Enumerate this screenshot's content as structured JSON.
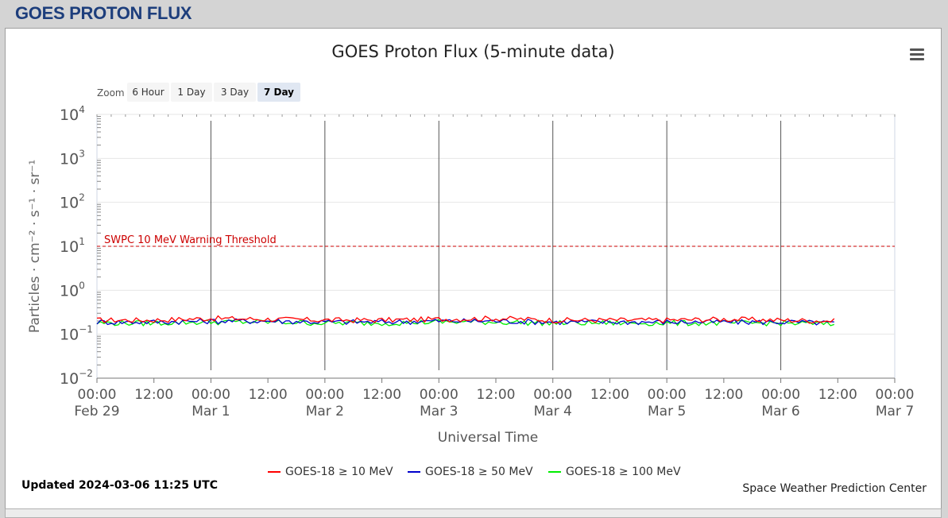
{
  "page": {
    "title": "GOES PROTON FLUX"
  },
  "chart_toolbar": {
    "zoom_label": "Zoom",
    "zoom_buttons": [
      "6 Hour",
      "1 Day",
      "3 Day",
      "7 Day"
    ],
    "active_zoom": "7 Day"
  },
  "footer": {
    "updated": "Updated 2024-03-06 11:25 UTC",
    "credit": "Space Weather Prediction Center"
  },
  "colors": {
    "ge10": "#ff0000",
    "ge50": "#0000cc",
    "ge100": "#00ee00",
    "threshold": "#cc0000"
  },
  "chart_data": {
    "type": "line",
    "title": "GOES Proton Flux (5-minute data)",
    "xlabel": "Universal Time",
    "ylabel": "Particles · cm⁻² · s⁻¹ · sr⁻¹",
    "y_scale": "log",
    "ylim": [
      0.01,
      10000
    ],
    "y_ticks": [
      {
        "base": "10",
        "exp": "4",
        "value": 10000
      },
      {
        "base": "10",
        "exp": "3",
        "value": 1000
      },
      {
        "base": "10",
        "exp": "2",
        "value": 100
      },
      {
        "base": "10",
        "exp": "1",
        "value": 10
      },
      {
        "base": "10",
        "exp": "0",
        "value": 1
      },
      {
        "base": "10",
        "exp": "−1",
        "value": 0.1
      },
      {
        "base": "10",
        "exp": "−2",
        "value": 0.01
      }
    ],
    "xlim": [
      "2024-02-29 00:00",
      "2024-03-07 00:00"
    ],
    "x_ticks": [
      {
        "time": "00:00",
        "date": "Feb 29",
        "hours": 0
      },
      {
        "time": "12:00",
        "date": "",
        "hours": 12
      },
      {
        "time": "00:00",
        "date": "Mar 1",
        "hours": 24
      },
      {
        "time": "12:00",
        "date": "",
        "hours": 36
      },
      {
        "time": "00:00",
        "date": "Mar 2",
        "hours": 48
      },
      {
        "time": "12:00",
        "date": "",
        "hours": 60
      },
      {
        "time": "00:00",
        "date": "Mar 3",
        "hours": 72
      },
      {
        "time": "12:00",
        "date": "",
        "hours": 84
      },
      {
        "time": "00:00",
        "date": "Mar 4",
        "hours": 96
      },
      {
        "time": "12:00",
        "date": "",
        "hours": 108
      },
      {
        "time": "00:00",
        "date": "Mar 5",
        "hours": 120
      },
      {
        "time": "12:00",
        "date": "",
        "hours": 132
      },
      {
        "time": "00:00",
        "date": "Mar 6",
        "hours": 144
      },
      {
        "time": "12:00",
        "date": "",
        "hours": 156
      },
      {
        "time": "00:00",
        "date": "Mar 7",
        "hours": 168
      }
    ],
    "day_markers_hours": [
      24,
      48,
      72,
      96,
      120,
      144
    ],
    "threshold": {
      "label": "SWPC 10 MeV Warning Threshold",
      "value": 10
    },
    "series": [
      {
        "name": "GOES-18 ≥ 10 MeV",
        "color": "#ff0000",
        "x": [
          "2024-02-29 00:00",
          "2024-02-29 12:00",
          "2024-03-01 00:00",
          "2024-03-01 12:00",
          "2024-03-02 00:00",
          "2024-03-02 12:00",
          "2024-03-03 00:00",
          "2024-03-03 12:00",
          "2024-03-04 00:00",
          "2024-03-04 12:00",
          "2024-03-05 00:00",
          "2024-03-05 12:00",
          "2024-03-06 00:00",
          "2024-03-06 11:25"
        ],
        "values": [
          0.21,
          0.21,
          0.23,
          0.22,
          0.21,
          0.21,
          0.22,
          0.23,
          0.21,
          0.21,
          0.21,
          0.22,
          0.21,
          0.2
        ]
      },
      {
        "name": "GOES-18 ≥ 50 MeV",
        "color": "#0000cc",
        "x": [
          "2024-02-29 00:00",
          "2024-02-29 12:00",
          "2024-03-01 00:00",
          "2024-03-01 12:00",
          "2024-03-02 00:00",
          "2024-03-02 12:00",
          "2024-03-03 00:00",
          "2024-03-03 12:00",
          "2024-03-04 00:00",
          "2024-03-04 12:00",
          "2024-03-05 00:00",
          "2024-03-05 12:00",
          "2024-03-06 00:00",
          "2024-03-06 11:25"
        ],
        "values": [
          0.19,
          0.19,
          0.2,
          0.2,
          0.19,
          0.19,
          0.2,
          0.2,
          0.19,
          0.19,
          0.19,
          0.19,
          0.19,
          0.18
        ]
      },
      {
        "name": "GOES-18 ≥ 100 MeV",
        "color": "#00ee00",
        "x": [
          "2024-02-29 00:00",
          "2024-02-29 12:00",
          "2024-03-01 00:00",
          "2024-03-01 12:00",
          "2024-03-02 00:00",
          "2024-03-02 12:00",
          "2024-03-03 00:00",
          "2024-03-03 12:00",
          "2024-03-04 00:00",
          "2024-03-04 12:00",
          "2024-03-05 00:00",
          "2024-03-05 12:00",
          "2024-03-06 00:00",
          "2024-03-06 11:25"
        ],
        "values": [
          0.18,
          0.18,
          0.19,
          0.19,
          0.18,
          0.18,
          0.19,
          0.19,
          0.18,
          0.18,
          0.18,
          0.18,
          0.18,
          0.17
        ]
      }
    ]
  }
}
